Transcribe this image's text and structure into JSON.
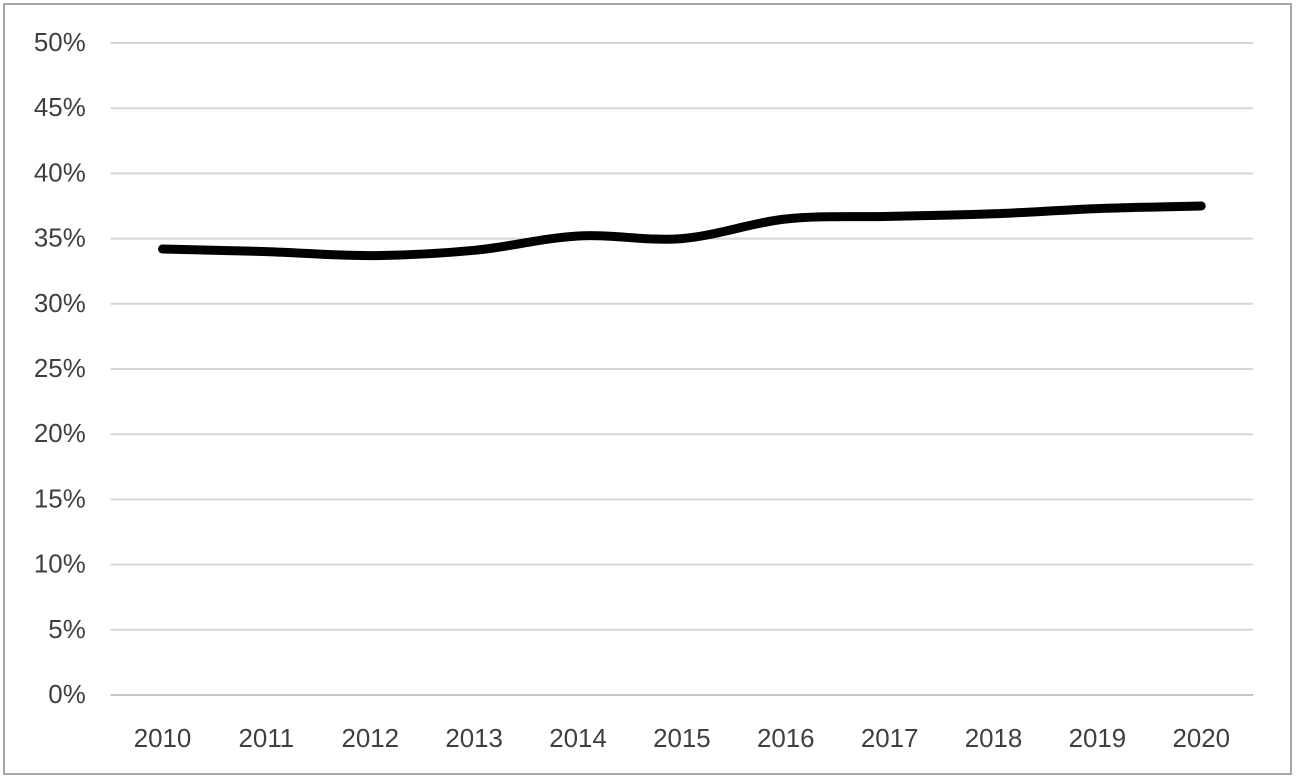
{
  "chart_data": {
    "type": "line",
    "categories": [
      "2010",
      "2011",
      "2012",
      "2013",
      "2014",
      "2015",
      "2016",
      "2017",
      "2018",
      "2019",
      "2020"
    ],
    "values": [
      34.2,
      34.0,
      33.7,
      34.1,
      35.2,
      35.0,
      36.5,
      36.7,
      36.9,
      37.3,
      37.5
    ],
    "title": "",
    "xlabel": "",
    "ylabel": "",
    "ylim": [
      0,
      50
    ],
    "ytick_step": 5,
    "yticks": [
      "0%",
      "5%",
      "10%",
      "15%",
      "20%",
      "25%",
      "30%",
      "35%",
      "40%",
      "45%",
      "50%"
    ],
    "grid": true,
    "legend": false,
    "smooth": true,
    "colors": {
      "line": "#000000",
      "gridline": "#d6d6d6",
      "axis_line": "#c6c6c6",
      "text": "#3f3f3f",
      "border": "#a6a6a6",
      "background": "#ffffff"
    }
  }
}
